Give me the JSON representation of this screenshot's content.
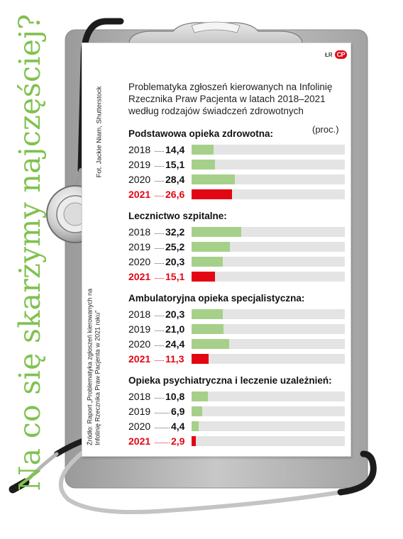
{
  "vertical_title": "Na co się skarżymy najczęściej?",
  "logo": {
    "prefix": "ŁR",
    "mark": "CP"
  },
  "photo_credit": "Fot. Jackie Niam, Shutterstock",
  "source": "Źródło: Raport „Problematyka zgłoszeń kierowanych na Infolinię Rzecznika Praw Pacjenta w 2021 roku”",
  "heading": "Problematyka zgłoszeń kierowanych na Infolinię Rzecznika Praw Pacjenta w latach 2018–2021 według rodzajów świadczeń zdrowotnych",
  "unit": "(proc.)",
  "colors": {
    "bar": "#a6d08a",
    "highlight": "#e30613",
    "track": "#e4e4e4",
    "title": "#7fc24f"
  },
  "chart_data": {
    "type": "bar",
    "orientation": "horizontal",
    "xlim": [
      0,
      100
    ],
    "highlight_year": "2021",
    "sections": [
      {
        "title": "Podstawowa opieka zdrowotna:",
        "rows": [
          {
            "year": "2018",
            "value": 14.4,
            "label": "14,4"
          },
          {
            "year": "2019",
            "value": 15.1,
            "label": "15,1"
          },
          {
            "year": "2020",
            "value": 28.4,
            "label": "28,4"
          },
          {
            "year": "2021",
            "value": 26.6,
            "label": "26,6"
          }
        ]
      },
      {
        "title": "Lecznictwo szpitalne:",
        "rows": [
          {
            "year": "2018",
            "value": 32.2,
            "label": "32,2"
          },
          {
            "year": "2019",
            "value": 25.2,
            "label": "25,2"
          },
          {
            "year": "2020",
            "value": 20.3,
            "label": "20,3"
          },
          {
            "year": "2021",
            "value": 15.1,
            "label": "15,1"
          }
        ]
      },
      {
        "title": "Ambulatoryjna opieka specjalistyczna:",
        "rows": [
          {
            "year": "2018",
            "value": 20.3,
            "label": "20,3"
          },
          {
            "year": "2019",
            "value": 21.0,
            "label": "21,0"
          },
          {
            "year": "2020",
            "value": 24.4,
            "label": "24,4"
          },
          {
            "year": "2021",
            "value": 11.3,
            "label": "11,3"
          }
        ]
      },
      {
        "title": "Opieka psychiatryczna i leczenie uzależnień:",
        "rows": [
          {
            "year": "2018",
            "value": 10.8,
            "label": "10,8"
          },
          {
            "year": "2019",
            "value": 6.9,
            "label": "6,9"
          },
          {
            "year": "2020",
            "value": 4.4,
            "label": "4,4"
          },
          {
            "year": "2021",
            "value": 2.9,
            "label": "2,9"
          }
        ]
      }
    ]
  }
}
